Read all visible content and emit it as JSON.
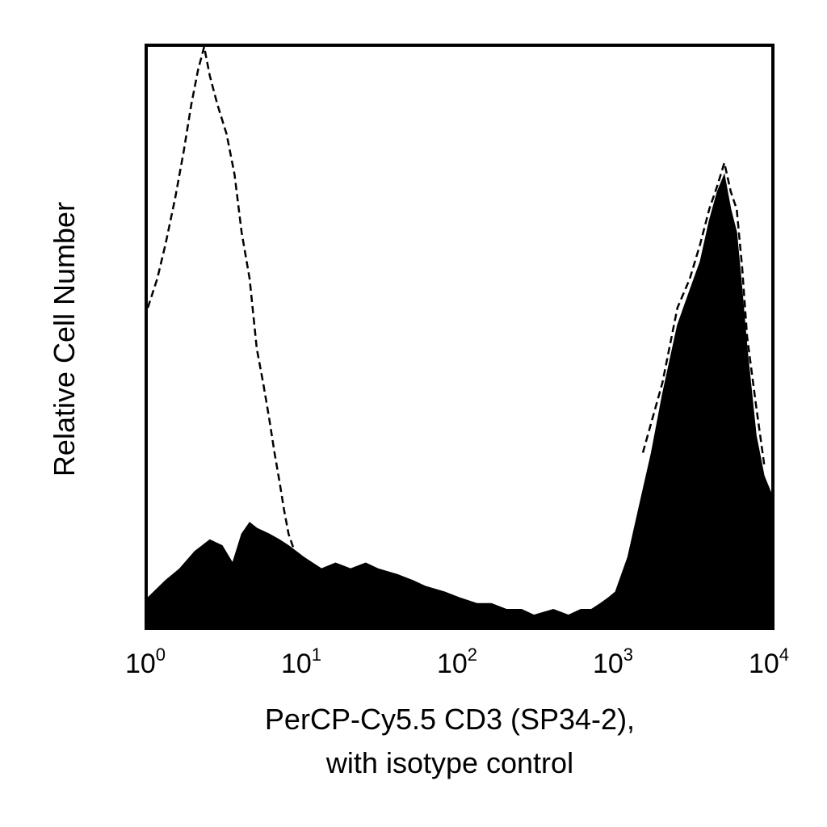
{
  "chart_data": {
    "type": "area",
    "x_scale": "log",
    "xlim": [
      1,
      10000
    ],
    "ylim": [
      0,
      100
    ],
    "grid": false,
    "legend": "none",
    "xlabel_lines": [
      "PerCP-Cy5.5 CD3 (SP34-2),",
      "with isotype control"
    ],
    "ylabel": "Relative Cell Number",
    "x_ticks": [
      {
        "value": 1,
        "base": "10",
        "exp": "0"
      },
      {
        "value": 10,
        "base": "10",
        "exp": "1"
      },
      {
        "value": 100,
        "base": "10",
        "exp": "2"
      },
      {
        "value": 1000,
        "base": "10",
        "exp": "3"
      },
      {
        "value": 10000,
        "base": "10",
        "exp": "4"
      }
    ],
    "series": [
      {
        "style": "filled",
        "color": "#000000",
        "x": [
          1,
          1.3,
          1.6,
          2.0,
          2.5,
          3.0,
          3.5,
          4.0,
          4.5,
          5.0,
          6.0,
          7.0,
          8.0,
          10,
          13,
          16,
          20,
          25,
          30,
          40,
          50,
          60,
          80,
          100,
          130,
          160,
          200,
          250,
          300,
          400,
          500,
          600,
          700,
          800,
          900,
          1000,
          1200,
          1400,
          1700,
          2000,
          2500,
          3000,
          3500,
          4000,
          4500,
          5000,
          5500,
          6000,
          6500,
          7000,
          8000,
          9000,
          10000
        ],
        "y": [
          5,
          8,
          10,
          13,
          15,
          14,
          11,
          16,
          18,
          17,
          16,
          15,
          14,
          12,
          10,
          11,
          10,
          11,
          10,
          9,
          8,
          7,
          6,
          5,
          4,
          4,
          3,
          3,
          2,
          3,
          2,
          3,
          3,
          4,
          5,
          6,
          12,
          20,
          30,
          40,
          52,
          58,
          63,
          70,
          75,
          78,
          72,
          68,
          58,
          48,
          33,
          26,
          23
        ]
      },
      {
        "style": "dashed",
        "color": "#000000",
        "x": [
          1,
          1.15,
          1.3,
          1.5,
          1.7,
          1.9,
          2.1,
          2.3,
          2.5,
          2.8,
          3.2,
          3.6,
          4.0,
          4.5,
          5.0,
          5.5,
          6.0,
          6.5,
          7.0,
          7.5,
          8.0,
          9.0,
          10,
          11,
          12
        ],
        "y": [
          55,
          60,
          66,
          74,
          82,
          90,
          96,
          100,
          95,
          90,
          85,
          78,
          68,
          60,
          48,
          42,
          36,
          30,
          25,
          20,
          16,
          12,
          8,
          6,
          4
        ]
      },
      {
        "style": "dashed",
        "color": "#000000",
        "x": [
          1500,
          2000,
          2500,
          3000,
          3500,
          4000,
          4500,
          5000,
          5500,
          6000,
          6500,
          7000,
          8000,
          9000
        ],
        "y": [
          30,
          42,
          55,
          60,
          66,
          72,
          76,
          80,
          75,
          72,
          62,
          50,
          38,
          28
        ]
      }
    ]
  }
}
